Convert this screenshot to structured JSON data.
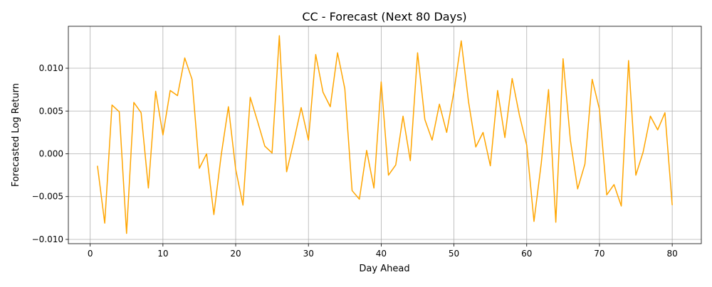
{
  "chart_data": {
    "type": "line",
    "title": "CC - Forecast (Next 80 Days)",
    "xlabel": "Day Ahead",
    "ylabel": "Forecasted Log Return",
    "xlim": [
      -3,
      84
    ],
    "ylim": [
      -0.0105,
      0.0149
    ],
    "xticks": [
      0,
      10,
      20,
      30,
      40,
      50,
      60,
      70,
      80
    ],
    "xtick_labels": [
      "0",
      "10",
      "20",
      "30",
      "40",
      "50",
      "60",
      "70",
      "80"
    ],
    "yticks": [
      -0.01,
      -0.005,
      0.0,
      0.005,
      0.01
    ],
    "ytick_labels": [
      "−0.010",
      "−0.005",
      "0.000",
      "0.005",
      "0.010"
    ],
    "grid": true,
    "line_color": "#FFA500",
    "series": [
      {
        "x": [
          1,
          2,
          3,
          4,
          5,
          6,
          7,
          8,
          9,
          10,
          11,
          12,
          13,
          14,
          15,
          16,
          17,
          18,
          19,
          20,
          21,
          22,
          23,
          24,
          25,
          26,
          27,
          28,
          29,
          30,
          31,
          32,
          33,
          34,
          35,
          36,
          37,
          38,
          39,
          40,
          41,
          42,
          43,
          44,
          45,
          46,
          47,
          48,
          49,
          50,
          51,
          52,
          53,
          54,
          55,
          56,
          57,
          58,
          59,
          60,
          61,
          62,
          63,
          64,
          65,
          66,
          67,
          68,
          69,
          70,
          71,
          72,
          73,
          74,
          75,
          76,
          77,
          78,
          79,
          80
        ],
        "values": [
          -0.0014,
          -0.0081,
          0.0057,
          0.0049,
          -0.0093,
          0.006,
          0.0048,
          -0.004,
          0.0073,
          0.0022,
          0.0074,
          0.0068,
          0.0112,
          0.0087,
          -0.0017,
          0.0,
          -0.0071,
          -0.0002,
          0.0055,
          -0.0018,
          -0.006,
          0.0066,
          0.0038,
          0.0009,
          0.0001,
          0.0138,
          -0.0021,
          0.0015,
          0.0054,
          0.0016,
          0.0116,
          0.0072,
          0.0055,
          0.0118,
          0.0076,
          -0.0043,
          -0.0053,
          0.0004,
          -0.004,
          0.0084,
          -0.0025,
          -0.0013,
          0.0044,
          -0.0008,
          0.0118,
          0.004,
          0.0016,
          0.0058,
          0.0025,
          0.0073,
          0.0132,
          0.0061,
          0.0008,
          0.0025,
          -0.0014,
          0.0074,
          0.0019,
          0.0088,
          0.0045,
          0.001,
          -0.0079,
          -0.0011,
          0.0075,
          -0.008,
          0.0111,
          0.0016,
          -0.0041,
          -0.0012,
          0.0087,
          0.0052,
          -0.0048,
          -0.0036,
          -0.0061,
          0.0109,
          -0.0025,
          0.0002,
          0.0044,
          0.0028,
          0.0048,
          -0.006
        ]
      }
    ]
  }
}
